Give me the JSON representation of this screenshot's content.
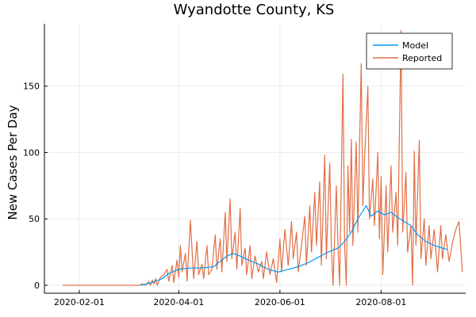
{
  "chart_data": {
    "type": "line",
    "title": "Wyandotte County, KS",
    "xlabel": "",
    "ylabel": "New Cases Per Day",
    "x_type": "date",
    "xlim": [
      "2020-01-11",
      "2020-09-21"
    ],
    "ylim": [
      -6,
      197
    ],
    "x_ticks": [
      "2020-02-01",
      "2020-04-01",
      "2020-06-01",
      "2020-08-01"
    ],
    "y_ticks": [
      0,
      50,
      100,
      150
    ],
    "grid": true,
    "legend_position": "top-right",
    "series": [
      {
        "name": "Model",
        "color": "#009af9",
        "points": [
          [
            "2020-03-09",
            0
          ],
          [
            "2020-03-16",
            2
          ],
          [
            "2020-03-22",
            5
          ],
          [
            "2020-03-26",
            9
          ],
          [
            "2020-04-01",
            12
          ],
          [
            "2020-04-08",
            13
          ],
          [
            "2020-04-15",
            13
          ],
          [
            "2020-04-22",
            14
          ],
          [
            "2020-04-26",
            18
          ],
          [
            "2020-04-30",
            22
          ],
          [
            "2020-05-04",
            24
          ],
          [
            "2020-05-08",
            22
          ],
          [
            "2020-05-13",
            19
          ],
          [
            "2020-05-19",
            16
          ],
          [
            "2020-05-25",
            12
          ],
          [
            "2020-05-31",
            10
          ],
          [
            "2020-06-06",
            12
          ],
          [
            "2020-06-12",
            14
          ],
          [
            "2020-06-18",
            17
          ],
          [
            "2020-06-24",
            21
          ],
          [
            "2020-06-30",
            25
          ],
          [
            "2020-07-06",
            28
          ],
          [
            "2020-07-10",
            33
          ],
          [
            "2020-07-14",
            40
          ],
          [
            "2020-07-18",
            50
          ],
          [
            "2020-07-21",
            56
          ],
          [
            "2020-07-23",
            60
          ],
          [
            "2020-07-26",
            52
          ],
          [
            "2020-07-30",
            56
          ],
          [
            "2020-08-03",
            53
          ],
          [
            "2020-08-07",
            55
          ],
          [
            "2020-08-11",
            51
          ],
          [
            "2020-08-15",
            48
          ],
          [
            "2020-08-19",
            45
          ],
          [
            "2020-08-23",
            38
          ],
          [
            "2020-08-28",
            33
          ],
          [
            "2020-09-02",
            30
          ],
          [
            "2020-09-07",
            28
          ],
          [
            "2020-09-10",
            27
          ]
        ]
      },
      {
        "name": "Reported",
        "color": "#e26f46",
        "points": [
          [
            "2020-01-22",
            0
          ],
          [
            "2020-03-08",
            0
          ],
          [
            "2020-03-10",
            1
          ],
          [
            "2020-03-12",
            0
          ],
          [
            "2020-03-14",
            3
          ],
          [
            "2020-03-15",
            0
          ],
          [
            "2020-03-16",
            4
          ],
          [
            "2020-03-17",
            1
          ],
          [
            "2020-03-18",
            5
          ],
          [
            "2020-03-19",
            0
          ],
          [
            "2020-03-21",
            6
          ],
          [
            "2020-03-23",
            8
          ],
          [
            "2020-03-25",
            12
          ],
          [
            "2020-03-26",
            3
          ],
          [
            "2020-03-28",
            15
          ],
          [
            "2020-03-29",
            2
          ],
          [
            "2020-03-31",
            19
          ],
          [
            "2020-04-01",
            6
          ],
          [
            "2020-04-02",
            30
          ],
          [
            "2020-04-03",
            10
          ],
          [
            "2020-04-05",
            24
          ],
          [
            "2020-04-06",
            3
          ],
          [
            "2020-04-08",
            49
          ],
          [
            "2020-04-10",
            5
          ],
          [
            "2020-04-12",
            33
          ],
          [
            "2020-04-13",
            8
          ],
          [
            "2020-04-15",
            16
          ],
          [
            "2020-04-16",
            5
          ],
          [
            "2020-04-18",
            30
          ],
          [
            "2020-04-19",
            8
          ],
          [
            "2020-04-21",
            12
          ],
          [
            "2020-04-23",
            38
          ],
          [
            "2020-04-24",
            12
          ],
          [
            "2020-04-26",
            35
          ],
          [
            "2020-04-27",
            10
          ],
          [
            "2020-04-29",
            55
          ],
          [
            "2020-04-30",
            18
          ],
          [
            "2020-05-02",
            65
          ],
          [
            "2020-05-03",
            20
          ],
          [
            "2020-05-05",
            40
          ],
          [
            "2020-05-06",
            12
          ],
          [
            "2020-05-08",
            58
          ],
          [
            "2020-05-09",
            15
          ],
          [
            "2020-05-11",
            28
          ],
          [
            "2020-05-12",
            8
          ],
          [
            "2020-05-14",
            30
          ],
          [
            "2020-05-15",
            5
          ],
          [
            "2020-05-17",
            22
          ],
          [
            "2020-05-19",
            10
          ],
          [
            "2020-05-21",
            18
          ],
          [
            "2020-05-22",
            5
          ],
          [
            "2020-05-24",
            25
          ],
          [
            "2020-05-26",
            8
          ],
          [
            "2020-05-28",
            20
          ],
          [
            "2020-05-30",
            2
          ],
          [
            "2020-06-01",
            35
          ],
          [
            "2020-06-02",
            10
          ],
          [
            "2020-06-04",
            42
          ],
          [
            "2020-06-06",
            15
          ],
          [
            "2020-06-08",
            48
          ],
          [
            "2020-06-09",
            20
          ],
          [
            "2020-06-11",
            40
          ],
          [
            "2020-06-12",
            10
          ],
          [
            "2020-06-14",
            30
          ],
          [
            "2020-06-16",
            52
          ],
          [
            "2020-06-17",
            15
          ],
          [
            "2020-06-19",
            60
          ],
          [
            "2020-06-20",
            25
          ],
          [
            "2020-06-22",
            70
          ],
          [
            "2020-06-23",
            30
          ],
          [
            "2020-06-25",
            78
          ],
          [
            "2020-06-26",
            15
          ],
          [
            "2020-06-28",
            98
          ],
          [
            "2020-06-29",
            20
          ],
          [
            "2020-07-01",
            92
          ],
          [
            "2020-07-02",
            30
          ],
          [
            "2020-07-03",
            0
          ],
          [
            "2020-07-05",
            75
          ],
          [
            "2020-07-06",
            30
          ],
          [
            "2020-07-07",
            0
          ],
          [
            "2020-07-09",
            159
          ],
          [
            "2020-07-10",
            30
          ],
          [
            "2020-07-11",
            0
          ],
          [
            "2020-07-12",
            90
          ],
          [
            "2020-07-13",
            40
          ],
          [
            "2020-07-14",
            110
          ],
          [
            "2020-07-15",
            30
          ],
          [
            "2020-07-17",
            108
          ],
          [
            "2020-07-18",
            40
          ],
          [
            "2020-07-20",
            167
          ],
          [
            "2020-07-21",
            60
          ],
          [
            "2020-07-22",
            95
          ],
          [
            "2020-07-24",
            150
          ],
          [
            "2020-07-25",
            50
          ],
          [
            "2020-07-27",
            80
          ],
          [
            "2020-07-28",
            45
          ],
          [
            "2020-07-30",
            100
          ],
          [
            "2020-07-31",
            35
          ],
          [
            "2020-08-01",
            82
          ],
          [
            "2020-08-02",
            8
          ],
          [
            "2020-08-04",
            75
          ],
          [
            "2020-08-05",
            25
          ],
          [
            "2020-08-07",
            90
          ],
          [
            "2020-08-08",
            40
          ],
          [
            "2020-08-10",
            70
          ],
          [
            "2020-08-11",
            30
          ],
          [
            "2020-08-13",
            192
          ],
          [
            "2020-08-14",
            40
          ],
          [
            "2020-08-16",
            85
          ],
          [
            "2020-08-17",
            25
          ],
          [
            "2020-08-19",
            45
          ],
          [
            "2020-08-20",
            0
          ],
          [
            "2020-08-21",
            101
          ],
          [
            "2020-08-22",
            30
          ],
          [
            "2020-08-24",
            109
          ],
          [
            "2020-08-25",
            20
          ],
          [
            "2020-08-27",
            50
          ],
          [
            "2020-08-28",
            15
          ],
          [
            "2020-08-30",
            45
          ],
          [
            "2020-08-31",
            20
          ],
          [
            "2020-09-02",
            42
          ],
          [
            "2020-09-04",
            10
          ],
          [
            "2020-09-06",
            45
          ],
          [
            "2020-09-07",
            20
          ],
          [
            "2020-09-09",
            38
          ],
          [
            "2020-09-11",
            18
          ],
          [
            "2020-09-13",
            32
          ],
          [
            "2020-09-15",
            42
          ],
          [
            "2020-09-17",
            48
          ],
          [
            "2020-09-19",
            10
          ]
        ]
      }
    ]
  }
}
